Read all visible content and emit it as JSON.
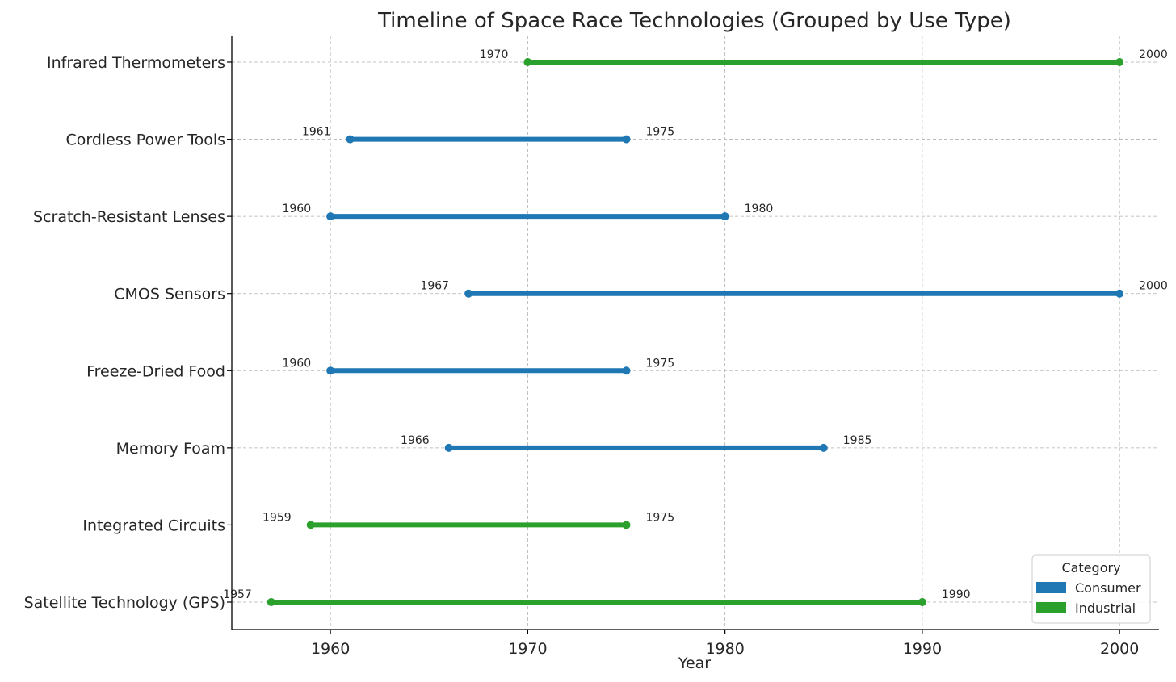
{
  "chart_data": {
    "type": "timeline",
    "title": "Timeline of Space Race Technologies (Grouped by Use Type)",
    "xlabel": "Year",
    "ylabel": "",
    "xlim": [
      1955,
      2002
    ],
    "xticks": [
      1960,
      1970,
      1980,
      1990,
      2000
    ],
    "grid": true,
    "legend": {
      "title": "Category",
      "placement": "bottom-right",
      "entries": [
        {
          "name": "Consumer",
          "color": "#1f77b4"
        },
        {
          "name": "Industrial",
          "color": "#2ca02c"
        }
      ]
    },
    "items": [
      {
        "name": "Infrared Thermometers",
        "start": 1970,
        "end": 2000,
        "category": "Industrial"
      },
      {
        "name": "Cordless Power Tools",
        "start": 1961,
        "end": 1975,
        "category": "Consumer"
      },
      {
        "name": "Scratch-Resistant Lenses",
        "start": 1960,
        "end": 1980,
        "category": "Consumer"
      },
      {
        "name": "CMOS Sensors",
        "start": 1967,
        "end": 2000,
        "category": "Consumer"
      },
      {
        "name": "Freeze-Dried Food",
        "start": 1960,
        "end": 1975,
        "category": "Consumer"
      },
      {
        "name": "Memory Foam",
        "start": 1966,
        "end": 1985,
        "category": "Consumer"
      },
      {
        "name": "Integrated Circuits",
        "start": 1959,
        "end": 1975,
        "category": "Industrial"
      },
      {
        "name": "Satellite Technology (GPS)",
        "start": 1957,
        "end": 1990,
        "category": "Industrial"
      }
    ]
  }
}
